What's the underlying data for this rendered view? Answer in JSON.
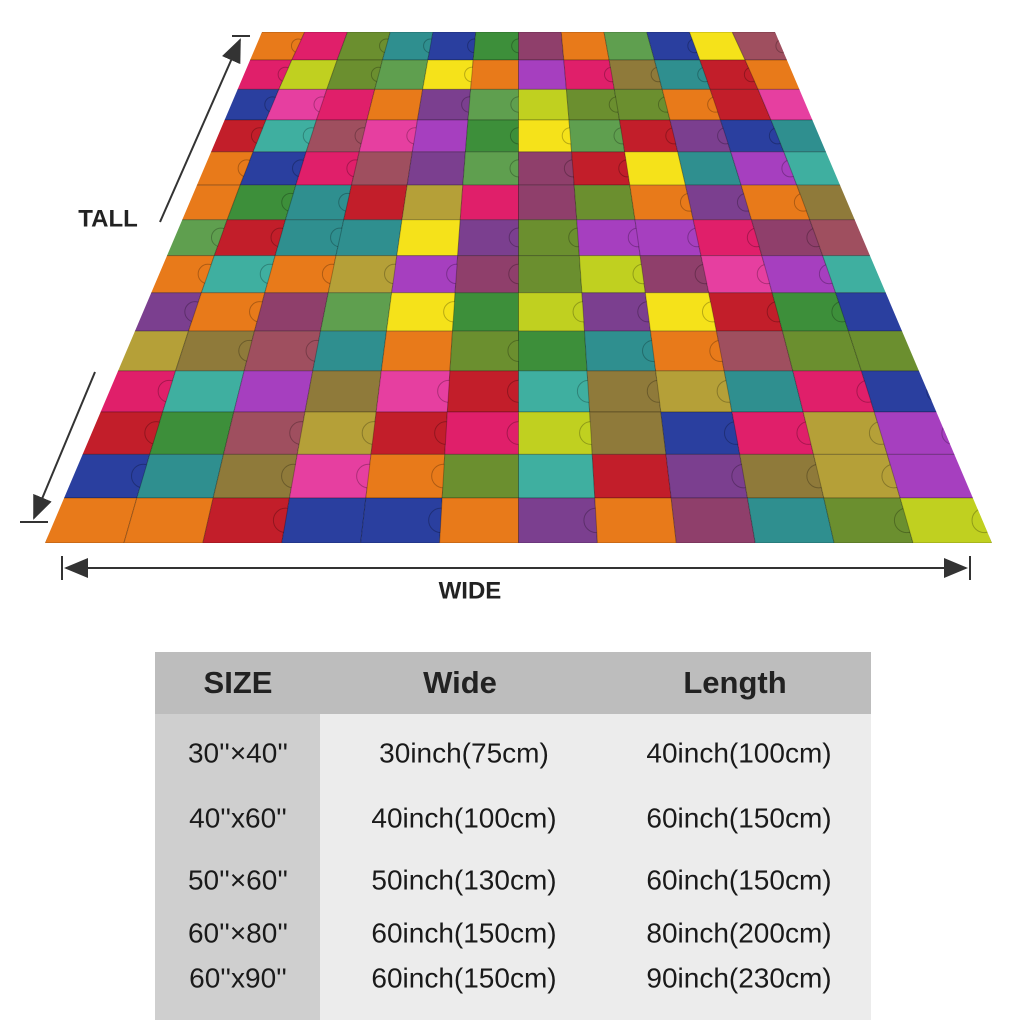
{
  "dimension_labels": {
    "tall": "TALL",
    "wide": "WIDE"
  },
  "table": {
    "header": [
      "SIZE",
      "Wide",
      "Length"
    ],
    "rows": [
      [
        "30''×40''",
        "30inch(75cm)",
        "40inch(100cm)"
      ],
      [
        "40''x60''",
        "40inch(100cm)",
        "60inch(150cm)"
      ],
      [
        "50''×60''",
        "50inch(130cm)",
        "60inch(150cm)"
      ],
      [
        "60''×80''",
        "60inch(150cm)",
        "80inch(200cm)"
      ],
      [
        "60''x90''",
        "60inch(150cm)",
        "90inch(230cm)"
      ]
    ]
  }
}
